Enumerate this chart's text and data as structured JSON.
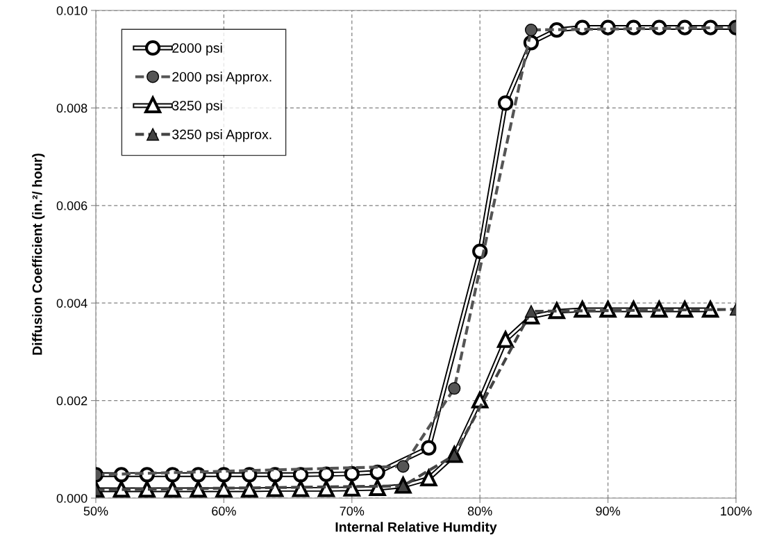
{
  "chart_data": {
    "type": "line",
    "xlabel": "Internal Relative Humdity",
    "ylabel": "Diffusion Coefficient (in.²/ hour)",
    "xlim": [
      50,
      100
    ],
    "xticks": [
      {
        "value": 50,
        "label": "50%"
      },
      {
        "value": 60,
        "label": "60%"
      },
      {
        "value": 70,
        "label": "70%"
      },
      {
        "value": 80,
        "label": "80%"
      },
      {
        "value": 90,
        "label": "90%"
      },
      {
        "value": 100,
        "label": "100%"
      }
    ],
    "ylim": [
      0,
      0.01
    ],
    "yticks": [
      {
        "value": 0,
        "label": "0.000"
      },
      {
        "value": 0.002,
        "label": "0.002"
      },
      {
        "value": 0.004,
        "label": "0.004"
      },
      {
        "value": 0.006,
        "label": "0.006"
      },
      {
        "value": 0.008,
        "label": "0.008"
      },
      {
        "value": 0.01,
        "label": "0.010"
      }
    ],
    "grid": true,
    "legend": "top left",
    "series": [
      {
        "name": "2000 psi",
        "color": "#ffffff",
        "marker": "circle",
        "line_style": "solid",
        "x": [
          50,
          52,
          54,
          56,
          58,
          60,
          62,
          64,
          66,
          68,
          70,
          72,
          76,
          80,
          82,
          84,
          86,
          88,
          90,
          92,
          94,
          96,
          98,
          100
        ],
        "values": [
          0.00048,
          0.00048,
          0.00048,
          0.00048,
          0.00048,
          0.00048,
          0.00048,
          0.00048,
          0.00048,
          0.00049,
          0.0005,
          0.00053,
          0.00103,
          0.00506,
          0.0081,
          0.00934,
          0.0096,
          0.00965,
          0.00965,
          0.00965,
          0.00965,
          0.00965,
          0.00965,
          0.00965
        ]
      },
      {
        "name": "2000 psi Approx.",
        "color": "#555555",
        "marker": "circle",
        "line_style": "dashed",
        "x": [
          50,
          74,
          78,
          84,
          100
        ],
        "values": [
          0.00048,
          0.00065,
          0.00225,
          0.0096,
          0.00965
        ]
      },
      {
        "name": "3250 psi",
        "color": "#ffffff",
        "marker": "triangle",
        "line_style": "solid",
        "x": [
          50,
          52,
          54,
          56,
          58,
          60,
          62,
          64,
          66,
          68,
          70,
          72,
          74,
          76,
          78,
          80,
          82,
          84,
          86,
          88,
          90,
          92,
          94,
          96,
          98
        ],
        "values": [
          0.00017,
          0.00017,
          0.00017,
          0.00017,
          0.00017,
          0.00017,
          0.00017,
          0.00018,
          0.00018,
          0.00018,
          0.00019,
          0.0002,
          0.00025,
          0.0004,
          0.00088,
          0.002,
          0.00324,
          0.00372,
          0.00383,
          0.00386,
          0.00386,
          0.00386,
          0.00386,
          0.00386,
          0.00386
        ]
      },
      {
        "name": "3250 psi Approx.",
        "color": "#444444",
        "marker": "triangle",
        "line_style": "dashed",
        "x": [
          50,
          74,
          78,
          84,
          100
        ],
        "values": [
          0.00017,
          0.00025,
          0.00088,
          0.00383,
          0.00387
        ]
      }
    ]
  }
}
